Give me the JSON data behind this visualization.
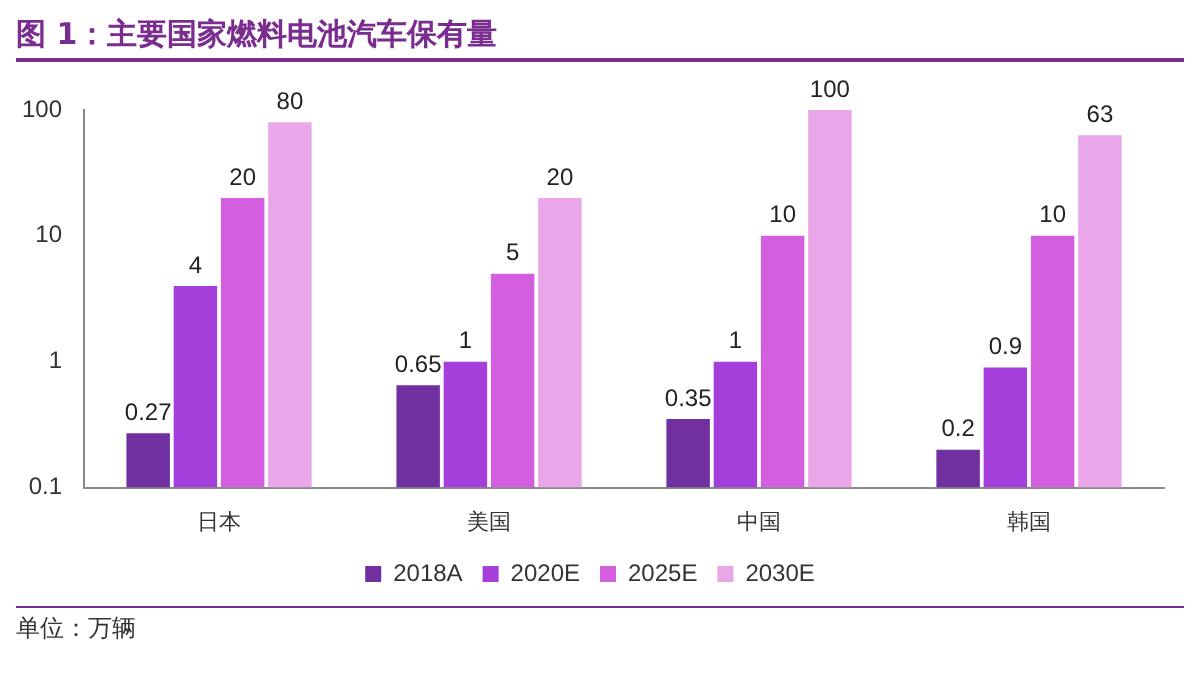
{
  "chart_data": {
    "type": "bar",
    "title": "图 1：主要国家燃料电池汽车保有量",
    "categories": [
      "日本",
      "美国",
      "中国",
      "韩国"
    ],
    "series": [
      {
        "name": "2018A",
        "color": "#7030a0",
        "values": [
          0.27,
          0.65,
          0.35,
          0.2
        ]
      },
      {
        "name": "2020E",
        "color": "#a43fdc",
        "values": [
          4,
          1,
          1,
          0.9
        ]
      },
      {
        "name": "2025E",
        "color": "#d35ee0",
        "values": [
          20,
          5,
          10,
          10
        ]
      },
      {
        "name": "2030E",
        "color": "#e9a7ea",
        "values": [
          80,
          20,
          100,
          63
        ]
      }
    ],
    "log": "y",
    "ylim": [
      0.1,
      100
    ],
    "yticks": [
      0.1,
      1,
      10,
      100
    ],
    "data_labels": true,
    "legend": "bottom",
    "annotations": [
      "单位：万辆"
    ]
  }
}
